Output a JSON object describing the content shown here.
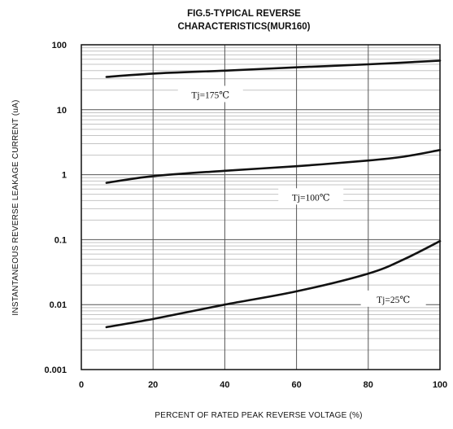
{
  "chart_data": {
    "type": "line",
    "title": "FIG.5-TYPICAL REVERSE",
    "subtitle": "CHARACTERISTICS(MUR160)",
    "xlabel": "PERCENT OF RATED PEAK REVERSE VOLTAGE (%)",
    "ylabel": "INSTANTANEOUS REVERSE LEAKAGE CURRENT (uA)",
    "xlim": [
      0,
      100
    ],
    "ylim": [
      0.001,
      100
    ],
    "yscale": "log",
    "grid": true,
    "x_ticks": [
      "0",
      "20",
      "40",
      "60",
      "80",
      "100"
    ],
    "y_ticks": [
      "0.001",
      "0.01",
      "0.1",
      "1",
      "10",
      "100"
    ],
    "series": [
      {
        "name": "Tj=175℃",
        "x": [
          7,
          20,
          40,
          60,
          80,
          100
        ],
        "y": [
          32,
          36,
          40,
          45,
          50,
          57
        ]
      },
      {
        "name": "Tj=100℃",
        "x": [
          7,
          20,
          40,
          60,
          80,
          90,
          100
        ],
        "y": [
          0.75,
          0.95,
          1.15,
          1.35,
          1.65,
          1.9,
          2.4
        ]
      },
      {
        "name": "Tj=25℃",
        "x": [
          7,
          20,
          40,
          60,
          80,
          90,
          100
        ],
        "y": [
          0.0045,
          0.006,
          0.01,
          0.016,
          0.03,
          0.05,
          0.095
        ]
      }
    ]
  }
}
